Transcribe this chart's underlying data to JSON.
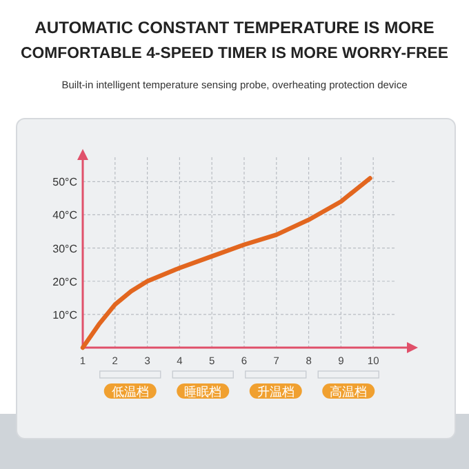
{
  "chart_data": {
    "type": "line",
    "title": "AUTOMATIC CONSTANT TEMPERATURE IS MORE COMFORTABLE 4-SPEED TIMER IS MORE WORRY-FREE",
    "subtitle": "Built-in intelligent temperature sensing probe, overheating protection device",
    "series": [
      {
        "color": "#e2661f",
        "x": [
          1,
          1.5,
          2,
          2.5,
          3,
          4,
          5,
          6,
          7,
          8,
          9,
          9.9
        ],
        "values": [
          0,
          7,
          13,
          17,
          20,
          24,
          27.5,
          31,
          34,
          38.5,
          44,
          51
        ]
      }
    ],
    "xlim": [
      1,
      11.3
    ],
    "ylim": [
      0,
      59
    ],
    "xticks": [
      1,
      2,
      3,
      4,
      5,
      6,
      7,
      8,
      9,
      10
    ],
    "yticks": [
      {
        "value": 10,
        "label": "10°C"
      },
      {
        "value": 20,
        "label": "20°C"
      },
      {
        "value": 30,
        "label": "30°C"
      },
      {
        "value": 40,
        "label": "40°C"
      },
      {
        "value": 50,
        "label": "50°C"
      }
    ],
    "grid": true,
    "line_style": "solid",
    "marker": "none",
    "annotations": [
      "低温档",
      "睡眠档",
      "升温档",
      "高温档"
    ]
  }
}
